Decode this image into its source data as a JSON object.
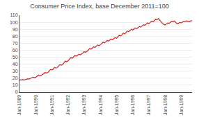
{
  "chart_data": {
    "type": "line",
    "title": "Consumer Price Index, base December 2011=100",
    "categories": [
      "Jan-1989",
      null,
      null,
      null,
      null,
      null,
      null,
      null,
      null,
      null,
      null,
      null,
      "Jan-1990",
      null,
      null,
      null,
      null,
      null,
      null,
      null,
      null,
      null,
      null,
      null,
      "Jan-1991",
      null,
      null,
      null,
      null,
      null,
      null,
      null,
      null,
      null,
      null,
      null,
      "Jan-1992",
      null,
      null,
      null,
      null,
      null,
      null,
      null,
      null,
      null,
      null,
      null,
      "Jan-1993",
      null,
      null,
      null,
      null,
      null,
      null,
      null,
      null,
      null,
      null,
      null,
      "Jan-1994",
      null,
      null,
      null,
      null,
      null,
      null,
      null,
      null,
      null,
      null,
      null,
      "Jan-1995",
      null,
      null,
      null,
      null,
      null,
      null,
      null,
      null,
      null,
      null,
      null,
      "Jan-1996",
      null,
      null,
      null,
      null,
      null,
      null,
      null,
      null,
      null,
      null,
      null,
      "Jan-1997",
      null,
      null,
      null,
      null,
      null,
      null,
      null,
      null,
      null,
      null,
      null,
      "Jan-1998",
      null,
      null,
      null,
      null,
      null,
      null,
      null,
      null,
      null,
      null,
      null,
      "Jan-1999",
      null,
      null,
      null,
      null,
      null,
      null,
      null,
      null
    ],
    "values": [
      17.5,
      17.8,
      18.2,
      17.9,
      17.6,
      18.3,
      19.2,
      18.8,
      19.5,
      20.2,
      21.5,
      20.8,
      21.2,
      22.8,
      24.5,
      23.5,
      24.2,
      25.0,
      26.5,
      28.3,
      27.5,
      28.0,
      30.0,
      32.5,
      31.8,
      33.0,
      35.5,
      34.5,
      35.2,
      37.0,
      39.5,
      38.5,
      39.5,
      42.0,
      44.5,
      43.5,
      44.8,
      47.0,
      49.5,
      48.5,
      50.0,
      52.5,
      51.5,
      52.8,
      54.0,
      53.5,
      54.5,
      56.0,
      58.0,
      57.0,
      58.5,
      60.0,
      62.5,
      61.5,
      63.0,
      65.0,
      64.0,
      65.5,
      67.5,
      66.5,
      67.8,
      69.5,
      71.5,
      70.5,
      72.0,
      74.0,
      73.0,
      74.5,
      76.0,
      75.0,
      76.5,
      78.0,
      77.0,
      78.8,
      81.5,
      80.5,
      82.0,
      84.5,
      83.5,
      85.0,
      87.5,
      86.5,
      88.0,
      90.0,
      89.0,
      90.5,
      92.0,
      91.0,
      92.5,
      94.0,
      93.0,
      94.8,
      96.5,
      95.5,
      97.0,
      99.0,
      98.0,
      99.5,
      101.5,
      100.5,
      102.0,
      104.5,
      103.5,
      105.5,
      103.0,
      101.0,
      98.5,
      97.0,
      96.0,
      97.5,
      99.0,
      98.5,
      100.0,
      101.5,
      100.5,
      101.8,
      99.5,
      97.8,
      98.5,
      100.0,
      99.0,
      100.5,
      101.0,
      101.5,
      102.0,
      101.0,
      100.5,
      101.8,
      102.5
    ],
    "color": "#cc2222",
    "ylim": [
      0,
      110
    ],
    "yticks": [
      0,
      10,
      20,
      30,
      40,
      50,
      60,
      70,
      80,
      90,
      100,
      110
    ],
    "grid": true
  }
}
